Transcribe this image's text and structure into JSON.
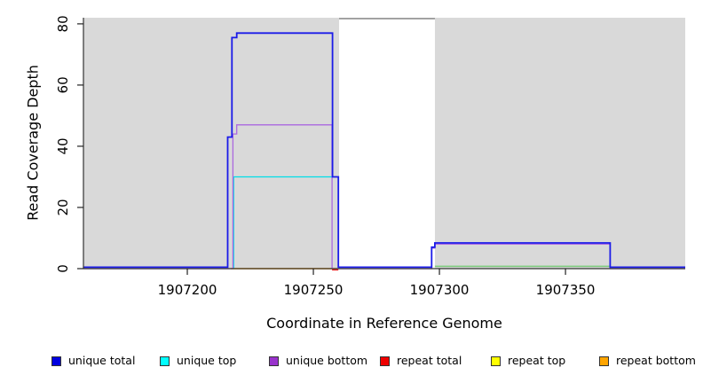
{
  "chart_data": {
    "type": "line",
    "title": "",
    "xlabel": "Coordinate in Reference Genome",
    "ylabel": "Read Coverage Depth",
    "x_ticks": [
      1907200,
      1907250,
      1907300,
      1907350
    ],
    "y_ticks": [
      0,
      20,
      40,
      60,
      80
    ],
    "xlim": [
      1907158.8,
      1907397.5
    ],
    "ylim": [
      0,
      82
    ],
    "grid": false,
    "plot_bg": "#d9d9d9",
    "axis_color": "#333333",
    "highlight_band": {
      "x0": 1907260.2,
      "x1": 1907298.2,
      "color": "#ffffff",
      "border_top": "#8a8a8a"
    },
    "series": [
      {
        "id": "annotation-green",
        "name": "unlabeled green baseline",
        "color": "#7ccb7c",
        "stroke_width": 1.5,
        "points": [
          [
            1907298.2,
            0.75
          ],
          [
            1907367.7,
            0.75
          ]
        ]
      },
      {
        "id": "repeat-total",
        "name": "repeat total",
        "color": "#e00000",
        "stroke_width": 1.2,
        "points": [
          [
            1907257.4,
            -0.4
          ],
          [
            1907259.9,
            -0.4
          ]
        ]
      },
      {
        "id": "repeat-bottom",
        "name": "repeat bottom",
        "color": "#ff9d00",
        "stroke_width": 1.6,
        "points": [
          [
            1907217.2,
            0
          ],
          [
            1907259.5,
            0
          ]
        ]
      },
      {
        "id": "unique-top",
        "name": "unique top",
        "color": "#00dde8",
        "stroke_width": 1.2,
        "points": [
          [
            1907218.4,
            0
          ],
          [
            1907218.4,
            30
          ],
          [
            1907257.6,
            30
          ]
        ]
      },
      {
        "id": "unique-bottom",
        "name": "unique bottom",
        "color": "#ab68e0",
        "stroke_width": 1.3,
        "points": [
          [
            1907158.8,
            0
          ],
          [
            1907218.1,
            0
          ],
          [
            1907218.1,
            44
          ],
          [
            1907219.6,
            44
          ],
          [
            1907219.6,
            47
          ],
          [
            1907257.4,
            47
          ],
          [
            1907257.4,
            0
          ],
          [
            1907296.9,
            0
          ],
          [
            1907296.9,
            6.7
          ],
          [
            1907298.2,
            6.7
          ],
          [
            1907298.2,
            8
          ],
          [
            1907367.7,
            8
          ],
          [
            1907367.7,
            0
          ],
          [
            1907397.5,
            0
          ]
        ]
      },
      {
        "id": "unique-total",
        "name": "unique total",
        "color": "#1b1be8",
        "stroke_width": 1.8,
        "points": [
          [
            1907158.8,
            0.45
          ],
          [
            1907216,
            0.45
          ],
          [
            1907216,
            43
          ],
          [
            1907217.7,
            43
          ],
          [
            1907217.7,
            75.5
          ],
          [
            1907219.6,
            75.5
          ],
          [
            1907219.6,
            77
          ],
          [
            1907257.6,
            77
          ],
          [
            1907257.6,
            30
          ],
          [
            1907259.9,
            30
          ],
          [
            1907259.9,
            0.45
          ],
          [
            1907296.9,
            0.45
          ],
          [
            1907296.9,
            7
          ],
          [
            1907298.2,
            7
          ],
          [
            1907298.2,
            8.4
          ],
          [
            1907367.7,
            8.4
          ],
          [
            1907367.7,
            0.45
          ],
          [
            1907397.5,
            0.45
          ]
        ]
      }
    ]
  },
  "legend": {
    "items": [
      {
        "id": "unique-total",
        "label": "unique total",
        "swatch": "#0000e0"
      },
      {
        "id": "unique-top",
        "label": "unique top",
        "swatch": "#00ffff"
      },
      {
        "id": "unique-bottom",
        "label": "unique bottom",
        "swatch": "#9933cc"
      },
      {
        "id": "repeat-total",
        "label": "repeat total",
        "swatch": "#ee0000"
      },
      {
        "id": "repeat-top",
        "label": "repeat top",
        "swatch": "#ffff00"
      },
      {
        "id": "repeat-bottom",
        "label": "repeat bottom",
        "swatch": "#ffa500"
      }
    ]
  }
}
